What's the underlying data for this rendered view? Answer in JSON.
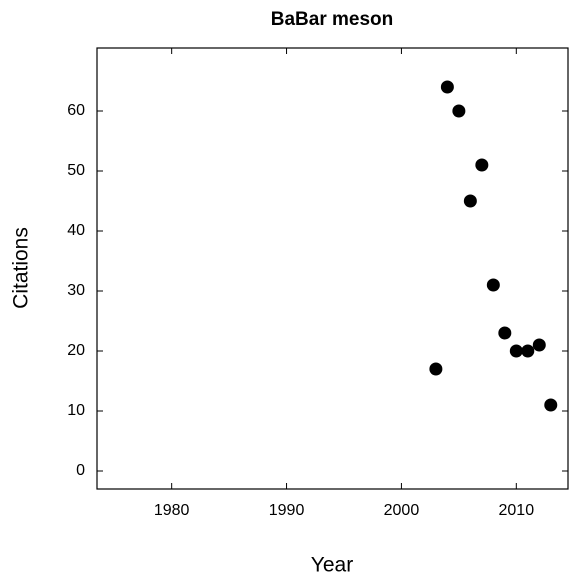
{
  "chart_data": {
    "type": "scatter",
    "title": "BaBar meson",
    "xlabel": "Year",
    "ylabel": "Citations",
    "x": [
      2003,
      2004,
      2005,
      2006,
      2007,
      2008,
      2009,
      2010,
      2011,
      2012,
      2013
    ],
    "values": [
      17,
      64,
      60,
      45,
      51,
      31,
      23,
      20,
      20,
      21,
      11
    ],
    "color": "#000000",
    "xlim": [
      1973.5,
      2014.5
    ],
    "xticks": [
      1980,
      1990,
      2000,
      2010
    ],
    "ylim": [
      -3,
      70.5
    ],
    "yticks": [
      0,
      10,
      20,
      30,
      40,
      50,
      60
    ]
  }
}
